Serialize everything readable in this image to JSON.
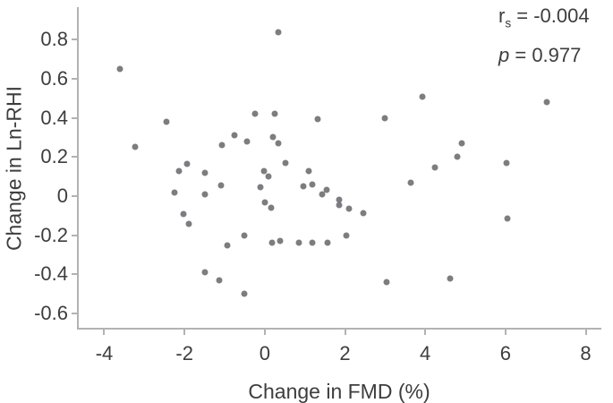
{
  "chart_data": {
    "type": "scatter",
    "title": "",
    "xlabel": "Change in FMD (%)",
    "ylabel": "Change in Ln-RHI",
    "xlim": [
      -4.68,
      8.39
    ],
    "ylim": [
      -0.682,
      0.966
    ],
    "x_ticks": [
      -4,
      -2,
      0,
      2,
      4,
      6,
      8
    ],
    "y_ticks": [
      0.8,
      0.6,
      0.4,
      0.2,
      0,
      -0.2,
      -0.4,
      -0.6
    ],
    "grid": false,
    "legend": null,
    "point_color": "#737377",
    "points": [
      [
        -3.61,
        0.65
      ],
      [
        -3.22,
        0.25
      ],
      [
        -2.46,
        0.38
      ],
      [
        -2.25,
        0.02
      ],
      [
        -2.13,
        0.13
      ],
      [
        -1.94,
        0.165
      ],
      [
        -2.03,
        -0.09
      ],
      [
        -1.9,
        -0.14
      ],
      [
        -1.5,
        0.12
      ],
      [
        -1.49,
        0.01
      ],
      [
        -1.1,
        0.055
      ],
      [
        -1.06,
        0.26
      ],
      [
        -1.49,
        -0.39
      ],
      [
        -1.14,
        -0.43
      ],
      [
        -0.94,
        -0.25
      ],
      [
        -0.75,
        0.31
      ],
      [
        -0.44,
        0.28
      ],
      [
        -0.5,
        -0.2
      ],
      [
        -0.5,
        -0.5
      ],
      [
        -0.24,
        0.42
      ],
      [
        -0.1,
        0.045
      ],
      [
        -0.02,
        0.13
      ],
      [
        0.01,
        -0.03
      ],
      [
        0.1,
        0.1
      ],
      [
        0.16,
        -0.06
      ],
      [
        0.19,
        -0.24
      ],
      [
        0.21,
        0.3
      ],
      [
        0.26,
        0.42
      ],
      [
        0.33,
        0.84
      ],
      [
        0.34,
        0.27
      ],
      [
        0.38,
        -0.23
      ],
      [
        0.52,
        0.17
      ],
      [
        0.85,
        -0.24
      ],
      [
        0.97,
        0.05
      ],
      [
        1.09,
        0.13
      ],
      [
        1.19,
        0.06
      ],
      [
        1.18,
        -0.24
      ],
      [
        1.33,
        0.395
      ],
      [
        1.43,
        0.01
      ],
      [
        1.55,
        0.03
      ],
      [
        1.57,
        -0.24
      ],
      [
        1.85,
        -0.02
      ],
      [
        1.85,
        -0.045
      ],
      [
        2.11,
        -0.065
      ],
      [
        2.45,
        -0.085
      ],
      [
        2.04,
        -0.2
      ],
      [
        2.99,
        0.4
      ],
      [
        3.03,
        -0.44
      ],
      [
        3.64,
        0.07
      ],
      [
        3.92,
        0.51
      ],
      [
        4.25,
        0.145
      ],
      [
        4.62,
        -0.42
      ],
      [
        4.8,
        0.2
      ],
      [
        4.91,
        0.27
      ],
      [
        6.02,
        0.17
      ],
      [
        6.04,
        -0.115
      ],
      [
        7.04,
        0.48
      ]
    ],
    "annotations": [
      {
        "text": "rs = -0.004"
      },
      {
        "text": "p = 0.977"
      }
    ]
  },
  "annotation": {
    "rs_symbol": "r",
    "rs_sub": "s",
    "rs_value": " = -0.004",
    "p_symbol": "p",
    "p_value": " = 0.977"
  }
}
